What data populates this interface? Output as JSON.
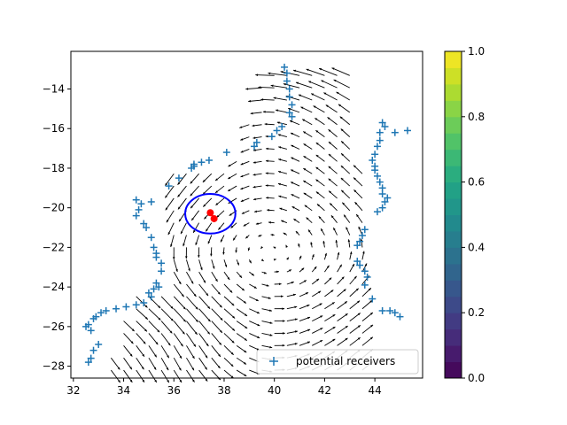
{
  "chart_data": {
    "type": "scatter",
    "title": "",
    "xlabel": "",
    "ylabel": "",
    "xlim": [
      31.9,
      45.9
    ],
    "ylim": [
      -28.6,
      -12.1
    ],
    "xticks": [
      32,
      34,
      36,
      38,
      40,
      42,
      44
    ],
    "yticks": [
      -14,
      -16,
      -18,
      -20,
      -22,
      -24,
      -26,
      -28
    ],
    "grid": false,
    "legend": {
      "placement": "lower-right",
      "entries": [
        {
          "label": "potential receivers",
          "marker": "+",
          "color": "#1f77b4"
        }
      ]
    },
    "colorbar": {
      "min": 0.0,
      "max": 1.0,
      "ticks": [
        "0.0",
        "0.2",
        "0.4",
        "0.6",
        "0.8",
        "1.0"
      ],
      "colormap": "viridis",
      "levels": 20
    },
    "series": [
      {
        "name": "potential receivers",
        "marker": "+",
        "color": "#1f77b4",
        "points": [
          [
            40.4,
            -12.9
          ],
          [
            40.5,
            -13.2
          ],
          [
            40.5,
            -13.6
          ],
          [
            40.6,
            -14.0
          ],
          [
            40.6,
            -14.4
          ],
          [
            40.7,
            -14.8
          ],
          [
            40.6,
            -15.2
          ],
          [
            40.7,
            -15.4
          ],
          [
            40.3,
            -15.9
          ],
          [
            40.1,
            -16.1
          ],
          [
            39.9,
            -16.4
          ],
          [
            39.3,
            -16.7
          ],
          [
            39.2,
            -16.9
          ],
          [
            38.1,
            -17.2
          ],
          [
            37.4,
            -17.6
          ],
          [
            37.1,
            -17.7
          ],
          [
            36.8,
            -17.8
          ],
          [
            36.8,
            -17.9
          ],
          [
            36.7,
            -18.0
          ],
          [
            36.2,
            -18.5
          ],
          [
            35.8,
            -18.9
          ],
          [
            34.5,
            -19.6
          ],
          [
            34.7,
            -19.8
          ],
          [
            35.1,
            -19.7
          ],
          [
            34.6,
            -20.1
          ],
          [
            34.5,
            -20.4
          ],
          [
            34.8,
            -20.8
          ],
          [
            34.9,
            -21.0
          ],
          [
            35.1,
            -21.5
          ],
          [
            35.2,
            -22.0
          ],
          [
            35.3,
            -22.3
          ],
          [
            35.3,
            -22.5
          ],
          [
            35.5,
            -22.8
          ],
          [
            35.5,
            -23.2
          ],
          [
            35.3,
            -23.8
          ],
          [
            35.2,
            -24.1
          ],
          [
            35.4,
            -24.0
          ],
          [
            35.0,
            -24.3
          ],
          [
            35.1,
            -24.5
          ],
          [
            34.8,
            -24.8
          ],
          [
            34.5,
            -24.9
          ],
          [
            34.1,
            -25.0
          ],
          [
            33.7,
            -25.1
          ],
          [
            33.3,
            -25.2
          ],
          [
            33.1,
            -25.3
          ],
          [
            32.9,
            -25.5
          ],
          [
            32.8,
            -25.6
          ],
          [
            32.6,
            -25.9
          ],
          [
            32.5,
            -26.0
          ],
          [
            32.7,
            -26.2
          ],
          [
            33.0,
            -26.9
          ],
          [
            32.8,
            -27.2
          ],
          [
            32.7,
            -27.6
          ],
          [
            32.6,
            -27.8
          ],
          [
            44.3,
            -15.7
          ],
          [
            44.4,
            -15.9
          ],
          [
            44.2,
            -16.2
          ],
          [
            44.8,
            -16.2
          ],
          [
            45.3,
            -16.1
          ],
          [
            44.2,
            -16.6
          ],
          [
            44.1,
            -16.9
          ],
          [
            44.0,
            -17.3
          ],
          [
            43.9,
            -17.6
          ],
          [
            44.0,
            -17.9
          ],
          [
            44.0,
            -18.1
          ],
          [
            44.1,
            -18.4
          ],
          [
            44.2,
            -18.7
          ],
          [
            44.3,
            -19.0
          ],
          [
            44.3,
            -19.3
          ],
          [
            44.5,
            -19.5
          ],
          [
            44.4,
            -19.7
          ],
          [
            44.3,
            -20.0
          ],
          [
            44.1,
            -20.2
          ],
          [
            43.6,
            -21.1
          ],
          [
            43.5,
            -21.4
          ],
          [
            43.4,
            -21.7
          ],
          [
            43.3,
            -21.9
          ],
          [
            43.3,
            -22.7
          ],
          [
            43.4,
            -22.9
          ],
          [
            43.6,
            -23.2
          ],
          [
            43.7,
            -23.5
          ],
          [
            43.6,
            -23.9
          ],
          [
            43.9,
            -24.6
          ],
          [
            44.3,
            -25.2
          ],
          [
            44.6,
            -25.2
          ],
          [
            44.8,
            -25.3
          ],
          [
            45.0,
            -25.5
          ]
        ]
      }
    ],
    "circle": {
      "center": [
        37.45,
        -20.3
      ],
      "radius_x": 1.0,
      "radius_y": 1.0,
      "color": "#0000ff"
    },
    "markers": [
      {
        "x": 37.45,
        "y": -20.25,
        "color": "#ff0000"
      },
      {
        "x": 37.6,
        "y": -20.55,
        "color": "#ff0000"
      }
    ],
    "quiver": {
      "color": "#000000",
      "description": "vector field"
    }
  }
}
